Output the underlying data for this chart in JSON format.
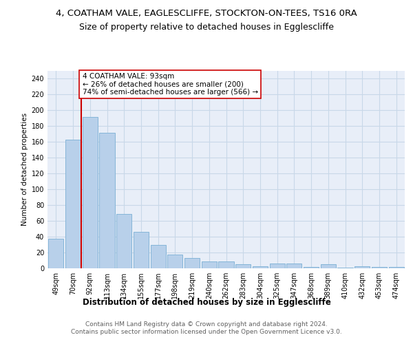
{
  "title": "4, COATHAM VALE, EAGLESCLIFFE, STOCKTON-ON-TEES, TS16 0RA",
  "subtitle": "Size of property relative to detached houses in Egglescliffe",
  "xlabel": "Distribution of detached houses by size in Egglescliffe",
  "ylabel": "Number of detached properties",
  "categories": [
    "49sqm",
    "70sqm",
    "92sqm",
    "113sqm",
    "134sqm",
    "155sqm",
    "177sqm",
    "198sqm",
    "219sqm",
    "240sqm",
    "262sqm",
    "283sqm",
    "304sqm",
    "325sqm",
    "347sqm",
    "368sqm",
    "389sqm",
    "410sqm",
    "432sqm",
    "453sqm",
    "474sqm"
  ],
  "values": [
    37,
    163,
    191,
    171,
    69,
    46,
    30,
    17,
    13,
    9,
    9,
    5,
    3,
    6,
    6,
    2,
    5,
    1,
    3,
    2,
    2
  ],
  "bar_color": "#b8d0ea",
  "bar_edge_color": "#7aafd4",
  "vline_x_index": 2,
  "vline_color": "#cc0000",
  "annotation_line1": "4 COATHAM VALE: 93sqm",
  "annotation_line2": "← 26% of detached houses are smaller (200)",
  "annotation_line3": "74% of semi-detached houses are larger (566) →",
  "annotation_box_color": "#ffffff",
  "annotation_box_edge_color": "#cc0000",
  "ylim": [
    0,
    250
  ],
  "yticks": [
    0,
    20,
    40,
    60,
    80,
    100,
    120,
    140,
    160,
    180,
    200,
    220,
    240
  ],
  "grid_color": "#c8d8e8",
  "background_color": "#e8eef8",
  "footer_text": "Contains HM Land Registry data © Crown copyright and database right 2024.\nContains public sector information licensed under the Open Government Licence v3.0.",
  "title_fontsize": 9.5,
  "subtitle_fontsize": 9,
  "xlabel_fontsize": 8.5,
  "ylabel_fontsize": 7.5,
  "tick_fontsize": 7,
  "annotation_fontsize": 7.5,
  "footer_fontsize": 6.5
}
